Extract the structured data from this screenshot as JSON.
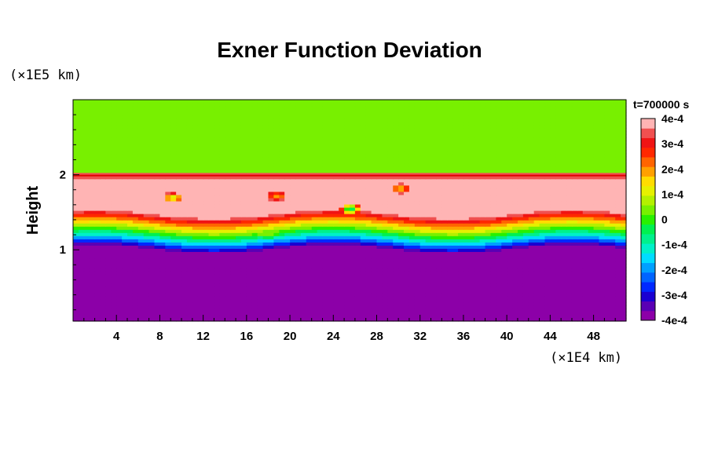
{
  "chart_data": {
    "type": "heatmap",
    "title": "Exner Function Deviation",
    "ylabel": "Height",
    "xlabel": "",
    "y_unit": "(×1E5 km)",
    "x_unit": "(×1E4 km)",
    "time_label": "t=700000 s",
    "xlim": [
      0,
      51
    ],
    "ylim": [
      0.05,
      3.0
    ],
    "x_ticks": [
      "4",
      "8",
      "12",
      "16",
      "20",
      "24",
      "28",
      "32",
      "36",
      "40",
      "44",
      "48"
    ],
    "x_tick_values": [
      4,
      8,
      12,
      16,
      20,
      24,
      28,
      32,
      36,
      40,
      44,
      48
    ],
    "y_ticks": [
      "1",
      "2"
    ],
    "y_tick_values": [
      1,
      2
    ],
    "colorbar": {
      "min": -0.0004,
      "max": 0.0004,
      "labels": [
        "4e-4",
        "3e-4",
        "2e-4",
        "1e-4",
        "0",
        "-1e-4",
        "-2e-4",
        "-3e-4",
        "-4e-4"
      ],
      "label_values": [
        0.0004,
        0.0003,
        0.0002,
        0.0001,
        0,
        -0.0001,
        -0.0002,
        -0.0003,
        -0.0004
      ],
      "colors": [
        "#8c00a8",
        "#5a00b4",
        "#1a00d2",
        "#0028ff",
        "#0064ff",
        "#00a0ff",
        "#00dcff",
        "#00f0c8",
        "#00f08c",
        "#00f050",
        "#28f000",
        "#78f000",
        "#b4f000",
        "#e6f000",
        "#ffdc00",
        "#ffa000",
        "#ff6400",
        "#ff2800",
        "#f01414",
        "#f05050",
        "#ffb4b4"
      ]
    },
    "regions": {
      "upper_level_deviation": 5e-05,
      "interface_height": 2.0,
      "lower_level_deviation": -0.0004,
      "wave_base_mean": 1.0,
      "wave_amplitude": 0.06,
      "wave_period": 22,
      "warm_layer_max": 0.0004
    },
    "features": [
      {
        "x": 9.2,
        "y": 1.7,
        "value": 0.0001
      },
      {
        "x": 18.0,
        "y": 1.22,
        "value": 5e-05
      },
      {
        "x": 18.8,
        "y": 1.72,
        "value": 0.0002
      },
      {
        "x": 25.6,
        "y": 1.55,
        "value": -5e-05
      },
      {
        "x": 30.2,
        "y": 1.82,
        "value": 0.00015
      }
    ]
  }
}
